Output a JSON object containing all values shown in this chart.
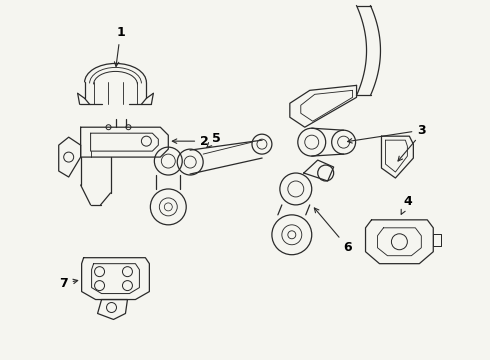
{
  "background_color": "#f5f5f0",
  "line_color": "#2a2a2a",
  "label_color": "#000000",
  "figsize": [
    4.9,
    3.6
  ],
  "dpi": 100,
  "lw": 0.9,
  "label_fontsize": 9
}
